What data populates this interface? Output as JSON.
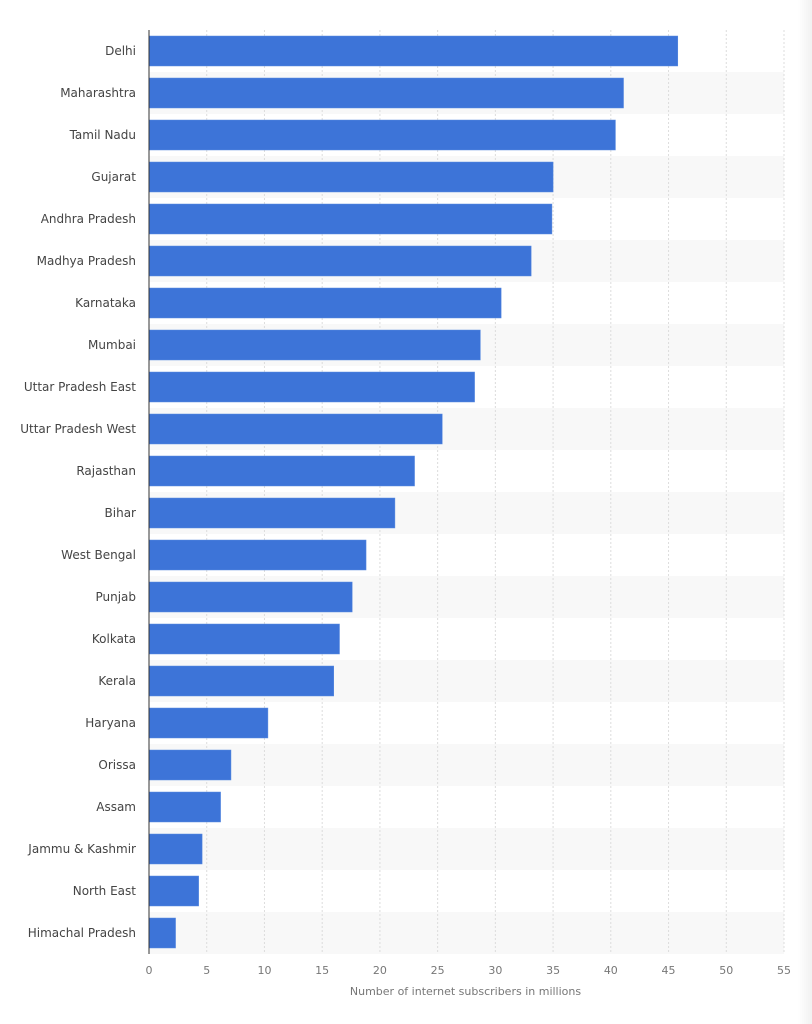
{
  "chart_data": {
    "type": "bar",
    "orientation": "horizontal",
    "categories": [
      "Delhi",
      "Maharashtra",
      "Tamil Nadu",
      "Gujarat",
      "Andhra Pradesh",
      "Madhya Pradesh",
      "Karnataka",
      "Mumbai",
      "Uttar Pradesh East",
      "Uttar Pradesh West",
      "Rajasthan",
      "Bihar",
      "West Bengal",
      "Punjab",
      "Kolkata",
      "Kerala",
      "Haryana",
      "Orissa",
      "Assam",
      "Jammu & Kashmir",
      "North East",
      "Himachal Pradesh"
    ],
    "values": [
      45.8,
      41.1,
      40.4,
      35.0,
      34.9,
      33.1,
      30.5,
      28.7,
      28.2,
      25.4,
      23.0,
      21.3,
      18.8,
      17.6,
      16.5,
      16.0,
      10.3,
      7.1,
      6.2,
      4.6,
      4.3,
      2.3
    ],
    "title": "",
    "xlabel": "Number of internet subscribers in millions",
    "ylabel": "",
    "xlim": [
      0,
      55
    ],
    "xticks": [
      "0",
      "5",
      "10",
      "15",
      "20",
      "25",
      "30",
      "35",
      "40",
      "45",
      "50",
      "55"
    ],
    "grid": true,
    "colors": {
      "bar": "#3d74d8",
      "band": "#f8f8f8",
      "grid": "#dcdcdc",
      "text": "#444444",
      "tick": "#777777"
    }
  }
}
